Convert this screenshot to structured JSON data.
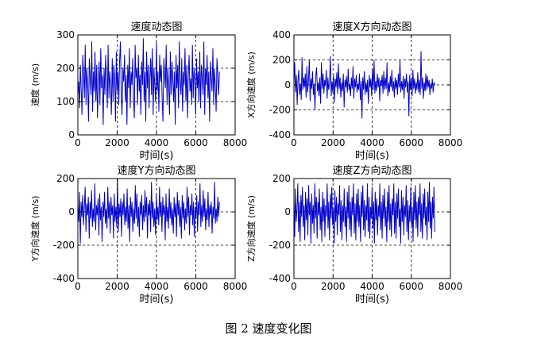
{
  "caption": "图 2  速度变化图",
  "chart_data": [
    {
      "type": "line",
      "title": "速度动态图",
      "xlabel": "时间(s)",
      "ylabel": "速度 (m/s)",
      "xlim": [
        0,
        8000
      ],
      "ylim": [
        0,
        300
      ],
      "xticks": [
        0,
        2000,
        4000,
        6000,
        8000
      ],
      "yticks": [
        0,
        100,
        200,
        300
      ],
      "grid": true,
      "grid_style": "dashed",
      "series": [
        {
          "color": "#0000cc",
          "x_range": [
            0,
            7200
          ],
          "step": 40,
          "values": [
            120,
            160,
            80,
            210,
            140,
            60,
            240,
            180,
            110,
            270,
            90,
            200,
            150,
            40,
            230,
            170,
            120,
            280,
            70,
            190,
            130,
            250,
            100,
            210,
            50,
            160,
            220,
            90,
            260,
            140,
            180,
            30,
            200,
            120,
            240,
            160,
            80,
            270,
            110,
            190,
            150,
            60,
            230,
            100,
            210,
            170,
            40,
            250,
            130,
            190,
            90,
            220,
            280,
            120,
            60,
            200,
            160,
            240,
            100,
            180,
            30,
            210,
            140,
            260,
            80,
            190,
            150,
            230,
            110,
            50,
            270,
            170,
            200,
            90,
            240,
            130,
            180,
            60,
            220,
            150,
            290,
            100,
            190,
            40,
            250,
            140,
            210,
            80,
            170,
            230,
            120,
            260,
            60,
            200,
            150,
            100,
            280,
            130,
            190,
            70,
            240,
            160,
            210,
            110,
            40,
            230,
            180,
            140,
            270,
            90,
            200,
            150,
            60,
            250,
            120,
            220,
            170,
            100,
            190,
            30,
            240,
            140,
            210,
            80,
            280,
            160,
            120,
            230,
            70,
            190,
            150,
            260,
            100,
            210,
            50,
            180,
            240,
            130,
            170,
            90,
            270,
            110,
            200,
            160,
            60,
            230,
            140,
            190,
            100,
            250,
            80,
            210,
            170,
            120,
            280,
            60,
            200,
            150,
            240,
            110,
            190,
            40,
            220,
            170,
            130,
            260,
            90,
            200,
            150,
            70,
            230,
            180,
            120,
            190
          ]
        }
      ]
    },
    {
      "type": "line",
      "title": "速度X方向动态图",
      "xlabel": "时间(s)",
      "ylabel": "X方向速度 (m/s)",
      "xlim": [
        0,
        8000
      ],
      "ylim": [
        -400,
        400
      ],
      "xticks": [
        0,
        2000,
        4000,
        6000,
        8000
      ],
      "yticks": [
        -400,
        -200,
        0,
        200,
        400
      ],
      "grid": true,
      "grid_style": "dashed",
      "series": [
        {
          "color": "#0000cc",
          "x_range": [
            0,
            7200
          ],
          "step": 40,
          "values": [
            20,
            180,
            -60,
            80,
            -160,
            40,
            120,
            -80,
            10,
            -120,
            220,
            -40,
            60,
            -20,
            90,
            -100,
            150,
            -60,
            30,
            200,
            -130,
            50,
            -30,
            110,
            -80,
            10,
            -200,
            70,
            140,
            -50,
            20,
            -90,
            60,
            -150,
            180,
            -30,
            90,
            -70,
            40,
            -10,
            120,
            -110,
            60,
            -40,
            10,
            230,
            -90,
            30,
            -60,
            80,
            -140,
            50,
            -20,
            100,
            -70,
            170,
            -30,
            60,
            -100,
            20,
            -50,
            90,
            -180,
            40,
            -20,
            70,
            -60,
            130,
            -40,
            10,
            -90,
            60,
            -30,
            150,
            -110,
            50,
            -20,
            80,
            -60,
            10,
            -40,
            90,
            -120,
            30,
            -270,
            60,
            -40,
            110,
            -80,
            20,
            -60,
            40,
            -150,
            80,
            -20,
            50,
            -90,
            130,
            -40,
            200,
            -70,
            30,
            -50,
            90,
            -20,
            60,
            -130,
            40,
            -10,
            80,
            -70,
            110,
            -40,
            60,
            -30,
            180,
            -90,
            20,
            -60,
            70,
            -20,
            120,
            -50,
            30,
            -100,
            60,
            -30,
            40,
            -80,
            90,
            -20,
            200,
            -60,
            30,
            -40,
            70,
            -110,
            50,
            -20,
            90,
            -60,
            30,
            -250,
            80,
            -40,
            60,
            -90,
            120,
            -30,
            50,
            -70,
            20,
            -40,
            100,
            -60,
            40,
            -80,
            270,
            -30,
            60,
            -110,
            20,
            -50,
            90,
            -40,
            70,
            -20,
            40,
            -80,
            10,
            -30,
            50,
            -60,
            20,
            0
          ]
        }
      ]
    },
    {
      "type": "line",
      "title": "速度Y方向动态图",
      "xlabel": "时间(s)",
      "ylabel": "Y方向速度 (m/s)",
      "xlim": [
        0,
        8000
      ],
      "ylim": [
        -400,
        200
      ],
      "xticks": [
        0,
        2000,
        4000,
        6000,
        8000
      ],
      "yticks": [
        -400,
        -200,
        0,
        200
      ],
      "grid": true,
      "grid_style": "dashed",
      "series": [
        {
          "color": "#0000cc",
          "x_range": [
            0,
            7200
          ],
          "step": 40,
          "values": [
            40,
            -60,
            120,
            -190,
            60,
            -30,
            100,
            -80,
            20,
            150,
            -120,
            50,
            -20,
            90,
            -160,
            60,
            -40,
            130,
            -90,
            20,
            -60,
            170,
            -110,
            40,
            -20,
            80,
            -140,
            110,
            -50,
            30,
            -180,
            60,
            -30,
            120,
            -70,
            20,
            -100,
            150,
            -40,
            60,
            -130,
            90,
            -20,
            40,
            -160,
            110,
            -60,
            30,
            -90,
            200,
            -120,
            50,
            -30,
            80,
            -150,
            60,
            -20,
            110,
            -80,
            30,
            -60,
            140,
            -100,
            40,
            -180,
            90,
            -30,
            60,
            -120,
            20,
            -70,
            160,
            -40,
            110,
            -90,
            30,
            -150,
            60,
            -20,
            100,
            -110,
            40,
            -60,
            130,
            -30,
            90,
            -160,
            50,
            -20,
            70,
            -120,
            180,
            -40,
            60,
            -90,
            20,
            -140,
            110,
            -50,
            30,
            -80,
            150,
            -30,
            60,
            -120,
            90,
            -20,
            40,
            -170,
            110,
            -60,
            30,
            -100,
            140,
            -40,
            60,
            -80,
            20,
            -130,
            90,
            -30,
            50,
            -150,
            120,
            -20,
            70,
            -90,
            30,
            -160,
            100,
            -40,
            60,
            -110,
            20,
            -70,
            150,
            -30,
            90,
            -140,
            40,
            -20,
            110,
            -80,
            60,
            -150,
            30,
            -40,
            100,
            -120,
            60,
            -20,
            170,
            -90,
            40,
            -60,
            130,
            -30,
            80,
            -110,
            20,
            -50,
            120,
            -90,
            40,
            -20,
            60,
            -130,
            30,
            -40,
            180,
            -70,
            20,
            -60,
            90,
            -30,
            60
          ]
        }
      ]
    },
    {
      "type": "line",
      "title": "速度Z方向动态图",
      "xlabel": "时间(s)",
      "ylabel": "Z方向速度 (m/s)",
      "xlim": [
        0,
        8000
      ],
      "ylim": [
        -400,
        200
      ],
      "xticks": [
        0,
        2000,
        4000,
        6000,
        8000
      ],
      "yticks": [
        -400,
        -200,
        0,
        200
      ],
      "grid": true,
      "grid_style": "dashed",
      "series": [
        {
          "color": "#0000cc",
          "x_range": [
            0,
            7200
          ],
          "step": 40,
          "values": [
            80,
            -150,
            140,
            -60,
            20,
            170,
            -120,
            60,
            -180,
            100,
            -30,
            150,
            -90,
            40,
            -170,
            120,
            -50,
            80,
            -140,
            160,
            -20,
            60,
            -190,
            110,
            -70,
            40,
            -130,
            170,
            -40,
            90,
            -160,
            60,
            -20,
            140,
            -110,
            30,
            -180,
            120,
            -60,
            80,
            -150,
            40,
            -30,
            170,
            -100,
            60,
            -170,
            110,
            -40,
            150,
            -80,
            20,
            -190,
            130,
            -60,
            90,
            -140,
            50,
            -20,
            160,
            -120,
            70,
            -170,
            40,
            -60,
            140,
            -90,
            30,
            -180,
            120,
            -40,
            160,
            -110,
            60,
            -150,
            90,
            -20,
            170,
            -130,
            50,
            -170,
            110,
            -60,
            140,
            -90,
            40,
            -180,
            120,
            -30,
            160,
            -110,
            70,
            -150,
            40,
            -50,
            170,
            -120,
            90,
            -160,
            30,
            -40,
            150,
            -100,
            60,
            -190,
            120,
            -50,
            80,
            -140,
            40,
            -30,
            170,
            -110,
            60,
            -160,
            100,
            -40,
            140,
            -90,
            30,
            -180,
            120,
            -60,
            160,
            -110,
            50,
            -150,
            80,
            -20,
            170,
            -130,
            60,
            -160,
            110,
            -40,
            140,
            -90,
            20,
            -190,
            130,
            -60,
            90,
            -140,
            40,
            -30,
            160,
            -120,
            70,
            -170,
            40,
            -60,
            150,
            -90,
            30,
            -180,
            120,
            -50,
            160,
            -100,
            60,
            -150,
            90,
            -20,
            170,
            -120,
            50,
            -160,
            110,
            -40,
            140,
            -80,
            30,
            -170,
            120,
            -60,
            180,
            -100,
            60,
            -160,
            90,
            -40,
            150,
            -120
          ]
        }
      ]
    }
  ]
}
